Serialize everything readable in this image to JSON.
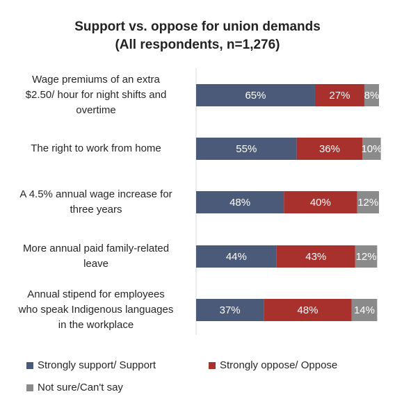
{
  "chart_data": {
    "type": "bar",
    "orientation": "horizontal",
    "stacked": true,
    "title": [
      "Support vs. oppose for union demands",
      "(All respondents, n=1,276)"
    ],
    "categories": [
      "Wage premiums of an extra $2.50/ hour for night shifts and overtime",
      "The right to work from home",
      "A 4.5% annual wage increase for three years",
      "More annual paid family-related leave",
      "Annual stipend for employees who speak Indigenous languages in the workplace"
    ],
    "category_lines": [
      [
        "Wage premiums of an extra",
        "$2.50/ hour for night shifts and",
        "overtime"
      ],
      [
        "The right to work from home"
      ],
      [
        "A 4.5% annual wage increase for",
        "three years"
      ],
      [
        "More annual paid family-related",
        "leave"
      ],
      [
        "Annual stipend for employees",
        "who speak Indigenous languages",
        "in the workplace"
      ]
    ],
    "series": [
      {
        "name": "Strongly support/ Support",
        "color": "#4a5a78",
        "values": [
          65,
          55,
          48,
          44,
          37
        ]
      },
      {
        "name": "Strongly oppose/ Oppose",
        "color": "#a8302d",
        "values": [
          27,
          36,
          40,
          43,
          48
        ]
      },
      {
        "name": "Not sure/Can't say",
        "color": "#8a8a8a",
        "values": [
          8,
          10,
          12,
          12,
          14
        ]
      }
    ],
    "value_suffix": "%",
    "xlim": [
      0,
      100
    ],
    "grid": false,
    "legend_position": "bottom"
  }
}
